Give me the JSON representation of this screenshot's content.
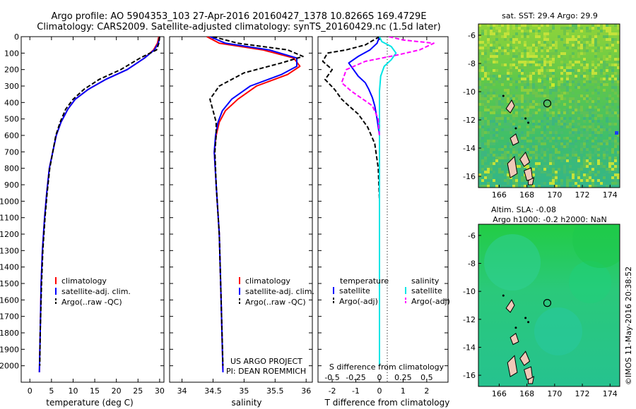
{
  "header": {
    "title_line1": "Argo profile: AO 5904353_103 27-Apr-2016 20160427_1378 10.8266S 169.4729E",
    "title_line2": "Climatology: CARS2009. Satellite-adjusted climatology: synTS_20160429.nc (1.5d later)"
  },
  "side_text": {
    "map1_title": "sat. SST: 29.4 Argo: 29.9",
    "map2_title_line1": "Altim. SLA: -0.08",
    "map2_title_line2": "Argo h1000: -0.2 h2000: NaN",
    "credit": "©IMOS 11-May-2016 20:38:52",
    "project_line1": "US ARGO PROJECT",
    "project_line2": "PI: DEAN ROEMMICH"
  },
  "colors": {
    "climatology": "#ff0000",
    "satellite": "#0000ff",
    "argo": "#000000",
    "salinity_satellite": "#00e5e5",
    "salinity_argo": "#ff00ff"
  },
  "chart_data": [
    {
      "type": "line",
      "xlabel": "temperature (deg C)",
      "ylabel": "",
      "xlim": [
        -2,
        31
      ],
      "ylim": [
        2100,
        0
      ],
      "xticks": [
        "0",
        "5",
        "10",
        "15",
        "20",
        "25",
        "30"
      ],
      "xtick_values": [
        0,
        5,
        10,
        15,
        20,
        25,
        30
      ],
      "yticks": [
        "0",
        "100",
        "200",
        "300",
        "400",
        "500",
        "600",
        "700",
        "800",
        "900",
        "1000",
        "1100",
        "1200",
        "1300",
        "1400",
        "1500",
        "1600",
        "1700",
        "1800",
        "1900",
        "2000"
      ],
      "ytick_values": [
        0,
        100,
        200,
        300,
        400,
        500,
        600,
        700,
        800,
        900,
        1000,
        1100,
        1200,
        1300,
        1400,
        1500,
        1600,
        1700,
        1800,
        1900,
        2000
      ],
      "legend": [
        "climatology",
        "satellite-adj. clim.",
        "Argo(..raw -QC)"
      ],
      "series": [
        {
          "name": "climatology",
          "x": [
            29.8,
            29.5,
            28.6,
            26.5,
            22.5,
            17.5,
            13.5,
            10.5,
            8.8,
            7.2,
            6.1,
            5.3,
            4.5,
            3.9,
            3.4,
            2.9,
            2.6,
            2.4,
            2.2
          ],
          "y": [
            0,
            40,
            80,
            130,
            200,
            260,
            320,
            380,
            440,
            520,
            600,
            700,
            800,
            950,
            1100,
            1300,
            1500,
            1800,
            2040
          ]
        },
        {
          "name": "satellite-adj. clim.",
          "x": [
            30.0,
            29.7,
            28.8,
            26.5,
            22.5,
            17.5,
            13.5,
            10.5,
            8.8,
            7.2,
            6.1,
            5.3,
            4.5,
            3.9,
            3.4,
            2.9,
            2.6,
            2.4,
            2.2
          ],
          "y": [
            0,
            40,
            80,
            130,
            200,
            260,
            320,
            380,
            440,
            520,
            600,
            700,
            800,
            950,
            1100,
            1300,
            1500,
            1800,
            2040
          ]
        },
        {
          "name": "Argo(..raw -QC)",
          "x": [
            30.0,
            29.8,
            29.3,
            25.5,
            21.0,
            16.0,
            12.5,
            10.0,
            8.3,
            7.0,
            6.0,
            5.3,
            4.6,
            4.0,
            3.5,
            3.0,
            2.7,
            2.4,
            2.3
          ],
          "y": [
            0,
            40,
            80,
            130,
            200,
            260,
            320,
            380,
            440,
            520,
            600,
            700,
            800,
            950,
            1100,
            1300,
            1500,
            1800,
            2000
          ]
        }
      ]
    },
    {
      "type": "line",
      "xlabel": "salinity",
      "ylabel": "",
      "xlim": [
        33.8,
        36.1
      ],
      "ylim": [
        2100,
        0
      ],
      "xticks": [
        "34",
        "34.5",
        "35",
        "35.5",
        "36"
      ],
      "xtick_values": [
        34,
        34.5,
        35,
        35.5,
        36
      ],
      "legend": [
        "climatology",
        "satellite-adj. clim.",
        "Argo(..raw -QC)"
      ],
      "series": [
        {
          "name": "climatology",
          "x": [
            34.4,
            34.6,
            35.3,
            35.8,
            35.9,
            35.7,
            35.2,
            34.9,
            34.7,
            34.6,
            34.55,
            34.52,
            34.55,
            34.6,
            34.63,
            34.66
          ],
          "y": [
            0,
            40,
            80,
            130,
            180,
            230,
            300,
            380,
            450,
            520,
            600,
            700,
            900,
            1200,
            1600,
            2040
          ]
        },
        {
          "name": "satellite-adj. clim.",
          "x": [
            34.45,
            34.7,
            35.4,
            35.85,
            35.85,
            35.6,
            35.1,
            34.8,
            34.65,
            34.58,
            34.54,
            34.52,
            34.55,
            34.6,
            34.63,
            34.66
          ],
          "y": [
            0,
            40,
            80,
            130,
            180,
            230,
            300,
            380,
            450,
            520,
            600,
            700,
            900,
            1200,
            1600,
            2040
          ]
        },
        {
          "name": "Argo(..raw -QC)",
          "x": [
            34.5,
            34.9,
            35.7,
            35.95,
            35.6,
            35.0,
            34.6,
            34.45,
            34.5,
            34.55,
            34.55,
            34.53,
            34.55,
            34.6,
            34.63,
            34.66
          ],
          "y": [
            0,
            40,
            80,
            120,
            160,
            220,
            300,
            380,
            450,
            520,
            600,
            700,
            900,
            1200,
            1600,
            2000
          ]
        }
      ]
    },
    {
      "type": "line",
      "xlabel": "T difference from climatology",
      "xlabel2": "S difference from climatology",
      "xlim": [
        -2.6,
        2.9
      ],
      "ylim": [
        2100,
        0
      ],
      "xticks": [
        "-2",
        "-1",
        "0",
        "1",
        "2"
      ],
      "xtick_values": [
        -2,
        -1,
        0,
        1,
        2
      ],
      "xticks_salinity": [
        "-0.5",
        "-0.25",
        "0",
        "0.25",
        "0.5"
      ],
      "xtick_values_salinity": [
        -0.5,
        -0.25,
        0,
        0.25,
        0.5
      ],
      "legend_temperature_title": "temperature",
      "legend_salinity_title": "salinity",
      "legend": [
        "satellite",
        "Argo(-adj)",
        "satellite",
        "Argo(-adj)"
      ],
      "series": [
        {
          "name": "satellite",
          "group": "temperature",
          "x": [
            0,
            -0.1,
            -0.4,
            -0.9,
            -1.3,
            -1.1,
            -0.9,
            -0.6,
            -0.45,
            -0.3,
            -0.2,
            -0.1,
            0,
            0
          ],
          "y": [
            0,
            40,
            80,
            120,
            160,
            200,
            240,
            280,
            320,
            370,
            420,
            500,
            600,
            1300
          ]
        },
        {
          "name": "Argo(-adj)",
          "group": "temperature",
          "x": [
            0.0,
            -0.6,
            -1.4,
            -2.2,
            -2.4,
            -2.0,
            -2.3,
            -1.9,
            -1.6,
            -1.3,
            -0.9,
            -0.5,
            -0.2,
            -0.05,
            0
          ],
          "y": [
            0,
            50,
            80,
            100,
            150,
            200,
            260,
            320,
            380,
            420,
            470,
            550,
            650,
            800,
            1000
          ]
        },
        {
          "name": "satellite",
          "group": "salinity",
          "x": [
            0,
            0.1,
            0.5,
            0.7,
            0.5,
            0.2,
            0.05,
            0,
            0,
            0
          ],
          "y": [
            0,
            30,
            60,
            100,
            140,
            180,
            240,
            330,
            600,
            2000
          ]
        },
        {
          "name": "Argo(-adj)",
          "group": "salinity",
          "x": [
            0.4,
            1.0,
            2.3,
            1.7,
            0.8,
            -0.6,
            -1.4,
            -1.6,
            -1.2,
            -0.7,
            -0.3,
            -0.05,
            0
          ],
          "y": [
            0,
            20,
            40,
            80,
            110,
            150,
            200,
            280,
            330,
            380,
            420,
            500,
            600
          ]
        }
      ]
    },
    {
      "type": "heatmap",
      "title": "sat. SST: 29.4 Argo: 29.9",
      "xlim": [
        164.5,
        174.7
      ],
      "ylim": [
        -16.8,
        -5.2
      ],
      "xticks": [
        "166",
        "168",
        "170",
        "172",
        "174"
      ],
      "xtick_values": [
        166,
        168,
        170,
        172,
        174
      ],
      "yticks": [
        "-6",
        "-8",
        "-10",
        "-12",
        "-14",
        "-16"
      ],
      "ytick_values": [
        -6,
        -8,
        -10,
        -12,
        -14,
        -16
      ],
      "float_position": {
        "lon": 169.47,
        "lat": -10.83
      }
    },
    {
      "type": "heatmap",
      "title": "Altim. SLA: -0.08",
      "xlim": [
        164.5,
        174.7
      ],
      "ylim": [
        -16.8,
        -5.2
      ],
      "xticks": [
        "166",
        "168",
        "170",
        "172",
        "174"
      ],
      "xtick_values": [
        166,
        168,
        170,
        172,
        174
      ],
      "yticks": [
        "-6",
        "-8",
        "-10",
        "-12",
        "-14",
        "-16"
      ],
      "ytick_values": [
        -6,
        -8,
        -10,
        -12,
        -14,
        -16
      ],
      "float_position": {
        "lon": 169.47,
        "lat": -10.83
      }
    }
  ]
}
